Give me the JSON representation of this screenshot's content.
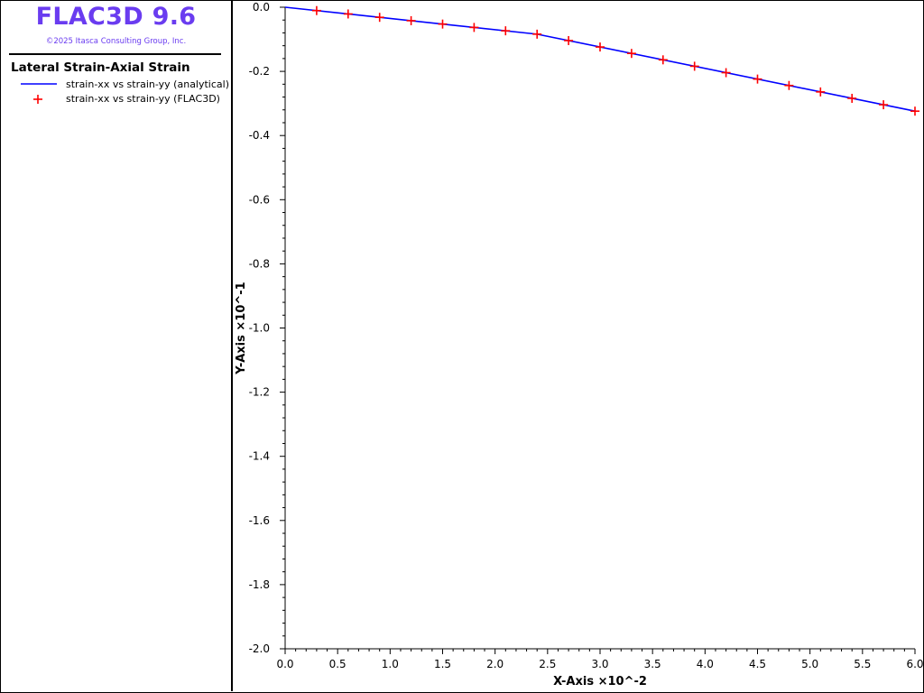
{
  "header": {
    "app_title": "FLAC3D 9.6",
    "copyright": "©2025 Itasca Consulting Group, Inc."
  },
  "colors": {
    "title": "#6a3cf0",
    "copyright": "#6a3cf0",
    "analytical_line": "#0000ff",
    "flac_marker": "#ff0000",
    "axis": "#000000"
  },
  "legend": {
    "title": "Lateral Strain-Axial Strain",
    "entries": [
      {
        "label": "strain-xx vs strain-yy (analytical)",
        "symbol": "line",
        "color": "#0000ff"
      },
      {
        "label": "strain-xx vs strain-yy (FLAC3D)",
        "symbol": "plus-marker",
        "color": "#ff0000"
      }
    ]
  },
  "chart_data": {
    "type": "line",
    "xlabel": "X-Axis ×10^-2",
    "ylabel": "Y-Axis ×10^-1",
    "xlim": [
      0.0,
      6.0
    ],
    "ylim": [
      -2.0,
      0.0
    ],
    "x_ticks": [
      "0.0",
      "0.5",
      "1.0",
      "1.5",
      "2.0",
      "2.5",
      "3.0",
      "3.5",
      "4.0",
      "4.5",
      "5.0",
      "5.5",
      "6.0"
    ],
    "y_ticks": [
      "0.0",
      "-0.2",
      "-0.4",
      "-0.6",
      "-0.8",
      "-1.0",
      "-1.2",
      "-1.4",
      "-1.6",
      "-1.8",
      "-2.0"
    ],
    "grid": false,
    "series": [
      {
        "name": "strain-xx vs strain-yy (analytical)",
        "style": "line",
        "x": [
          0.0,
          2.4,
          6.0
        ],
        "y": [
          0.0,
          -0.084,
          -0.324
        ]
      },
      {
        "name": "strain-xx vs strain-yy (FLAC3D)",
        "style": "plus-marker",
        "x": [
          0.3,
          0.6,
          0.9,
          1.2,
          1.5,
          1.8,
          2.1,
          2.4,
          2.7,
          3.0,
          3.3,
          3.6,
          3.9,
          4.2,
          4.5,
          4.8,
          5.1,
          5.4,
          5.7,
          6.0
        ],
        "y": [
          -0.0105,
          -0.021,
          -0.0315,
          -0.042,
          -0.0525,
          -0.063,
          -0.0735,
          -0.084,
          -0.104,
          -0.124,
          -0.144,
          -0.164,
          -0.184,
          -0.204,
          -0.224,
          -0.244,
          -0.264,
          -0.284,
          -0.304,
          -0.324
        ]
      }
    ]
  }
}
